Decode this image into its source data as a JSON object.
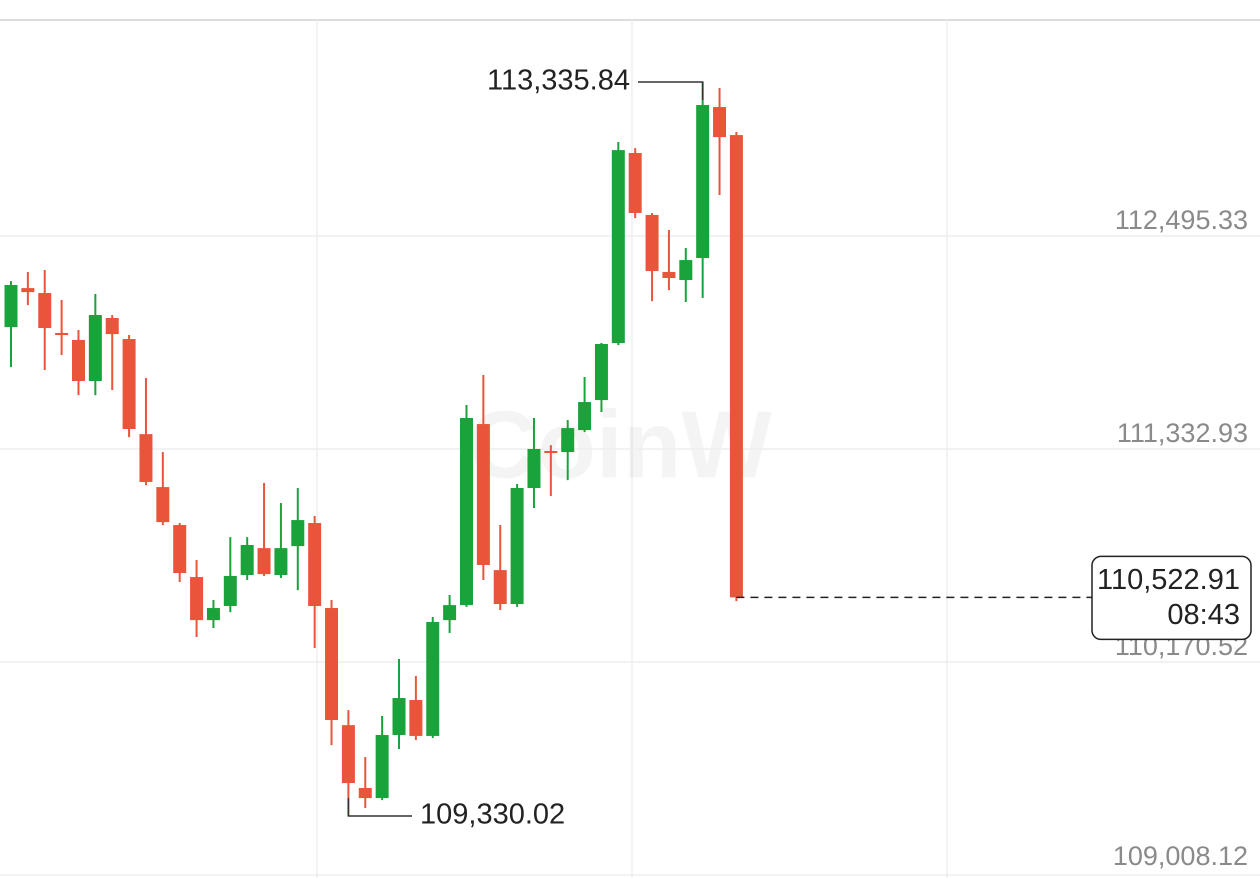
{
  "chart_data": {
    "type": "candlestick",
    "watermark": "CoinW",
    "up_color": "#1ba33b",
    "down_color": "#e8553a",
    "open": [
      111998,
      112211,
      112184,
      111966,
      111928,
      111704,
      112048,
      111933,
      111414,
      111125,
      110918,
      110634,
      110399,
      110476,
      110645,
      110792,
      110645,
      110803,
      110929,
      110465,
      109826,
      109483,
      109428,
      109772,
      109963,
      109767,
      110399,
      110481,
      111469,
      110672,
      110487,
      111120,
      111322,
      111316,
      111436,
      111600,
      111911,
      112948,
      112610,
      112299,
      112255,
      112375,
      113199,
      113046
    ],
    "high": [
      112249,
      112299,
      112310,
      112146,
      111982,
      112179,
      112064,
      111955,
      111720,
      111316,
      110929,
      110727,
      110509,
      110852,
      110852,
      111147,
      111038,
      111120,
      110967,
      110509,
      109908,
      109652,
      109876,
      110187,
      110094,
      110416,
      110536,
      111573,
      111737,
      110918,
      111142,
      111502,
      111354,
      111491,
      111726,
      111911,
      113008,
      112975,
      112621,
      112528,
      112430,
      113335.84,
      113303,
      113063
    ],
    "low": [
      111780,
      112118,
      111764,
      111846,
      111627,
      111627,
      111655,
      111398,
      111136,
      110918,
      110607,
      110307,
      110356,
      110443,
      110618,
      110640,
      110629,
      110563,
      110247,
      109717,
      109330.02,
      109374,
      109417,
      109696,
      109745,
      109756,
      110329,
      110471,
      110618,
      110454,
      110471,
      111011,
      111076,
      111163,
      111425,
      111535,
      111900,
      112593,
      112140,
      112200,
      112135,
      112157,
      112719,
      110503
    ],
    "close": [
      112228,
      112189,
      111993,
      111955,
      111704,
      112064,
      111960,
      111442,
      111153,
      110934,
      110656,
      110399,
      110465,
      110640,
      110809,
      110650,
      110792,
      110945,
      110476,
      109854,
      109510,
      109428,
      109772,
      109974,
      109767,
      110389,
      110481,
      111502,
      110700,
      110487,
      111120,
      111333,
      111311,
      111447,
      111589,
      111906,
      112964,
      112621,
      112304,
      112266,
      112364,
      113210,
      113035,
      110522.91
    ],
    "ylim": [
      109008.12,
      113674
    ],
    "yticks": [
      {
        "value": 109008.12,
        "label": "109,008.12"
      },
      {
        "value": 110170.52,
        "label": "110,170.52"
      },
      {
        "value": 111332.93,
        "label": "111,332.93"
      },
      {
        "value": 112495.33,
        "label": "112,495.33"
      }
    ],
    "grid": true,
    "annotations": {
      "high": {
        "value": 113335.84,
        "label": "113,335.84"
      },
      "low": {
        "value": 109330.02,
        "label": "109,330.02"
      },
      "last": {
        "value": 110522.91,
        "label": "110,522.91"
      },
      "countdown": "08:43"
    }
  }
}
